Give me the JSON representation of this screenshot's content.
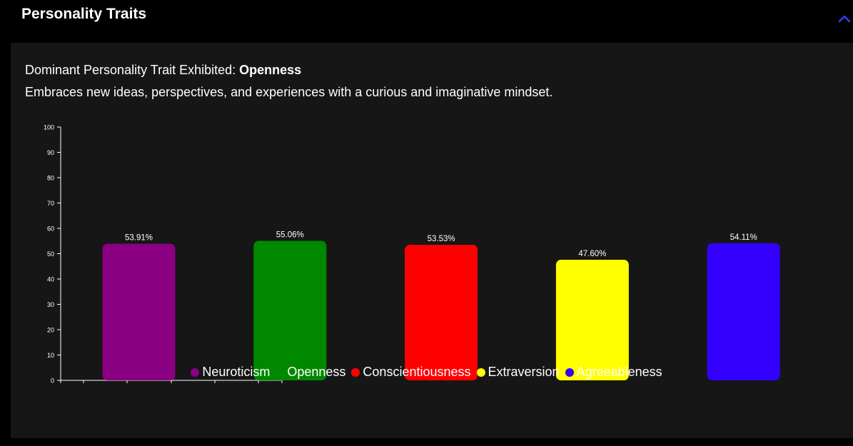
{
  "section": {
    "title": "Personality Traits",
    "toggle_icon": "chevron-up-icon",
    "toggle_color": "#3a3aff"
  },
  "dominant": {
    "label": "Dominant Personality Trait Exhibited: ",
    "value": "Openness",
    "description": "Embraces new ideas, perspectives, and experiences with a curious and imaginative mindset."
  },
  "chart_data": {
    "type": "bar",
    "categories": [
      "Neuroticism",
      "Openness",
      "Conscientiousness",
      "Extraversion",
      "Agreeableness"
    ],
    "values": [
      53.91,
      55.06,
      53.53,
      47.6,
      54.11
    ],
    "data_labels": [
      "53.91%",
      "55.06%",
      "53.53%",
      "47.60%",
      "54.11%"
    ],
    "colors": [
      "#8b0083",
      "#008800",
      "#ff0000",
      "#ffff00",
      "#3300ff"
    ],
    "ylim": [
      0,
      100
    ],
    "yticks": [
      0,
      10,
      20,
      30,
      40,
      50,
      60,
      70,
      80,
      90,
      100
    ],
    "grid": false,
    "legend_position": "bottom-center",
    "title": "",
    "xlabel": "",
    "ylabel": ""
  }
}
